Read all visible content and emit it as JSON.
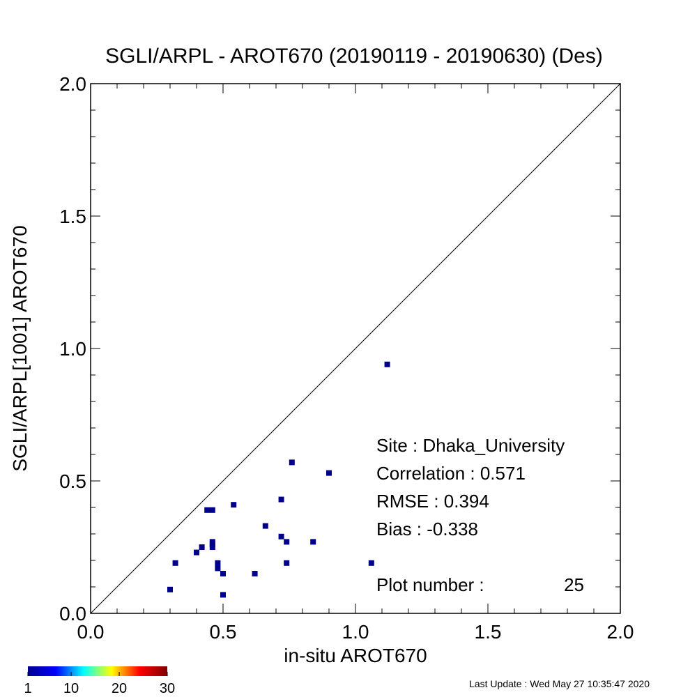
{
  "chart_data": {
    "type": "scatter",
    "title": "SGLI/ARPL - AROT670 (20190119 - 20190630) (Des)",
    "xlabel": "in-situ AROT670",
    "ylabel": "SGLI/ARPL[1001]    AROT670",
    "xlim": [
      0.0,
      2.0
    ],
    "ylim": [
      0.0,
      2.0
    ],
    "xticks": [
      "0.0",
      "0.5",
      "1.0",
      "1.5",
      "2.0"
    ],
    "yticks": [
      "0.0",
      "0.5",
      "1.0",
      "1.5",
      "2.0"
    ],
    "one_to_one_line": true,
    "grid": false,
    "marker_color": "#00008b",
    "points": [
      {
        "x": 0.3,
        "y": 0.09
      },
      {
        "x": 0.32,
        "y": 0.19
      },
      {
        "x": 0.4,
        "y": 0.23
      },
      {
        "x": 0.42,
        "y": 0.25
      },
      {
        "x": 0.44,
        "y": 0.39
      },
      {
        "x": 0.46,
        "y": 0.39
      },
      {
        "x": 0.46,
        "y": 0.27
      },
      {
        "x": 0.46,
        "y": 0.26
      },
      {
        "x": 0.46,
        "y": 0.25
      },
      {
        "x": 0.48,
        "y": 0.19
      },
      {
        "x": 0.48,
        "y": 0.17
      },
      {
        "x": 0.5,
        "y": 0.15
      },
      {
        "x": 0.5,
        "y": 0.07
      },
      {
        "x": 0.54,
        "y": 0.41
      },
      {
        "x": 0.62,
        "y": 0.15
      },
      {
        "x": 0.66,
        "y": 0.33
      },
      {
        "x": 0.72,
        "y": 0.43
      },
      {
        "x": 0.72,
        "y": 0.29
      },
      {
        "x": 0.74,
        "y": 0.27
      },
      {
        "x": 0.74,
        "y": 0.19
      },
      {
        "x": 0.76,
        "y": 0.57
      },
      {
        "x": 0.84,
        "y": 0.27
      },
      {
        "x": 0.9,
        "y": 0.53
      },
      {
        "x": 1.06,
        "y": 0.19
      },
      {
        "x": 1.12,
        "y": 0.94
      }
    ],
    "stats": {
      "site": "Site : Dhaka_University",
      "correlation": "Correlation :    0.571",
      "rmse": "RMSE :    0.394",
      "bias": "Bias :   -0.338",
      "plot_number": "Plot number :",
      "plot_number_value": "25"
    },
    "colorbar": {
      "ticks": [
        "1",
        "10",
        "20",
        "30"
      ],
      "tick_values": [
        1,
        10,
        20,
        30
      ],
      "range": [
        1,
        30
      ],
      "colormap": [
        "#00008f",
        "#0000ff",
        "#00ffff",
        "#ffff00",
        "#ff0000",
        "#800000"
      ]
    }
  },
  "footer": {
    "last_update": "Last Update : Wed May 27 10:35:47 2020"
  }
}
